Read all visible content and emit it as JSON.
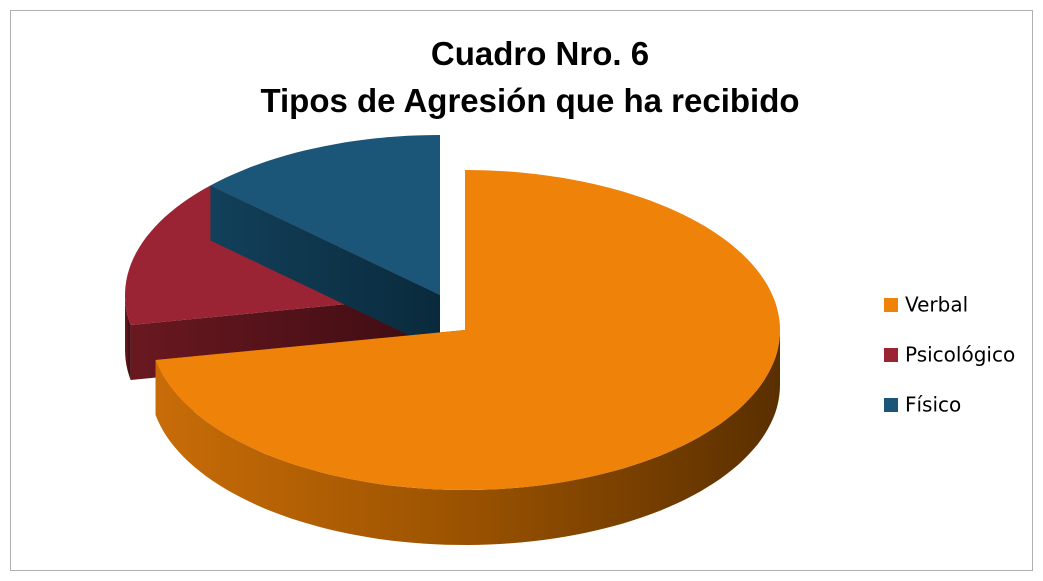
{
  "chart_data": {
    "type": "pie",
    "title": "Cuadro Nro. 6",
    "subtitle": "Tipos de Agresión que ha recibido",
    "categories": [
      "Verbal",
      "Psicológico",
      "Físico"
    ],
    "values": [
      72,
      15,
      13
    ],
    "colors": [
      "#ef8208",
      "#9a2433",
      "#1b5577"
    ],
    "legend": "right"
  }
}
